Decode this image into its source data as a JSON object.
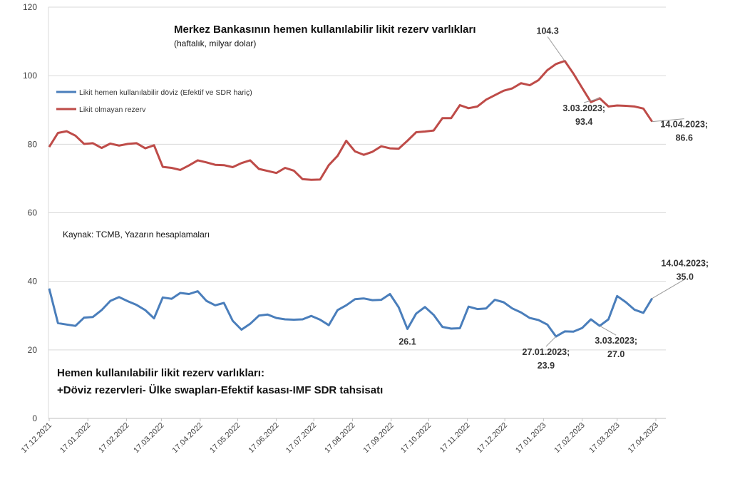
{
  "chart_data": {
    "type": "line",
    "title": "Merkez Bankasının hemen kullanılabilir likit rezerv varlıkları",
    "subtitle": "(haftalık, milyar dolar)",
    "source": "Kaynak: TCMB, Yazarın hesaplamaları",
    "note_lines": [
      "Hemen kullanılabilir likit rezerv varlıkları:",
      "+Döviz rezervleri- Ülke swapları-Efektif kasası-IMF SDR tahsisatı"
    ],
    "ylim": [
      0,
      120
    ],
    "y_ticks": [
      "0",
      "20",
      "40",
      "60",
      "80",
      "100",
      "120"
    ],
    "grid": true,
    "legend_position": "top-left",
    "x_tick_labels": [
      "17.12.2021",
      "17.01.2022",
      "17.02.2022",
      "17.03.2022",
      "17.04.2022",
      "17.05.2022",
      "17.06.2022",
      "17.07.2022",
      "17.08.2022",
      "17.09.2022",
      "17.10.2022",
      "17.11.2022",
      "17.12.2022",
      "17.01.2023",
      "17.02.2023",
      "17.03.2023",
      "17.04.2023"
    ],
    "x": [
      "17.12.2021",
      "24.12.2021",
      "31.12.2021",
      "07.01.2022",
      "14.01.2022",
      "21.01.2022",
      "28.01.2022",
      "04.02.2022",
      "11.02.2022",
      "18.02.2022",
      "25.02.2022",
      "04.03.2022",
      "11.03.2022",
      "18.03.2022",
      "25.03.2022",
      "01.04.2022",
      "08.04.2022",
      "15.04.2022",
      "22.04.2022",
      "29.04.2022",
      "06.05.2022",
      "13.05.2022",
      "20.05.2022",
      "27.05.2022",
      "03.06.2022",
      "10.06.2022",
      "17.06.2022",
      "24.06.2022",
      "01.07.2022",
      "08.07.2022",
      "15.07.2022",
      "22.07.2022",
      "29.07.2022",
      "05.08.2022",
      "12.08.2022",
      "19.08.2022",
      "26.08.2022",
      "02.09.2022",
      "09.09.2022",
      "16.09.2022",
      "23.09.2022",
      "30.09.2022",
      "07.10.2022",
      "14.10.2022",
      "21.10.2022",
      "28.10.2022",
      "04.11.2022",
      "11.11.2022",
      "18.11.2022",
      "25.11.2022",
      "02.12.2022",
      "09.12.2022",
      "16.12.2022",
      "23.12.2022",
      "30.12.2022",
      "06.01.2023",
      "13.01.2023",
      "20.01.2023",
      "27.01.2023",
      "03.02.2023",
      "10.02.2023",
      "17.02.2023",
      "24.02.2023",
      "03.03.2023",
      "10.03.2023",
      "17.03.2023",
      "24.03.2023",
      "31.03.2023",
      "07.04.2023",
      "14.04.2023"
    ],
    "series": [
      {
        "name": "Likit hemen kullanılabilir döviz (Efektif ve SDR hariç)",
        "color": "#4a7ebb",
        "values": [
          37.9,
          27.8,
          27.4,
          27.0,
          29.4,
          29.6,
          31.6,
          34.3,
          35.4,
          34.2,
          33.1,
          31.6,
          29.2,
          35.3,
          34.9,
          36.6,
          36.3,
          37.1,
          34.3,
          33.0,
          33.7,
          28.5,
          25.9,
          27.6,
          30.0,
          30.3,
          29.3,
          28.9,
          28.8,
          28.9,
          29.9,
          28.8,
          27.2,
          31.6,
          33.0,
          34.8,
          35.0,
          34.5,
          34.6,
          36.3,
          32.4,
          26.1,
          30.6,
          32.5,
          30.2,
          26.7,
          26.2,
          26.3,
          32.6,
          31.9,
          32.1,
          34.6,
          33.9,
          32.1,
          30.9,
          29.3,
          28.7,
          27.4,
          23.9,
          25.4,
          25.3,
          26.4,
          28.9,
          27.0,
          28.9,
          35.7,
          33.9,
          31.7,
          30.8,
          35.0
        ]
      },
      {
        "name": "Likit olmayan rezerv",
        "color": "#be4b48",
        "values": [
          79.2,
          83.3,
          83.8,
          82.5,
          80.1,
          80.3,
          78.9,
          80.2,
          79.6,
          80.1,
          80.3,
          78.8,
          79.7,
          73.4,
          73.1,
          72.5,
          73.8,
          75.3,
          74.7,
          74.0,
          73.9,
          73.3,
          74.5,
          75.3,
          72.8,
          72.2,
          71.6,
          73.1,
          72.3,
          69.8,
          69.6,
          69.7,
          73.9,
          76.6,
          81.0,
          77.9,
          76.9,
          77.8,
          79.4,
          78.8,
          78.7,
          81.0,
          83.5,
          83.7,
          84.0,
          87.6,
          87.6,
          91.4,
          90.5,
          91.0,
          93.0,
          94.3,
          95.6,
          96.3,
          97.8,
          97.2,
          98.7,
          101.6,
          103.4,
          104.3,
          100.6,
          96.4,
          92.3,
          93.4,
          91.0,
          91.3,
          91.2,
          91.0,
          90.4,
          86.6
        ]
      }
    ],
    "annotations": [
      {
        "series": 1,
        "index": 59,
        "lines": [
          "104.3"
        ]
      },
      {
        "series": 1,
        "index": 63,
        "lines": [
          "3.03.2023;",
          "93.4"
        ]
      },
      {
        "series": 1,
        "index": 69,
        "lines": [
          "14.04.2023;",
          "86.6"
        ]
      },
      {
        "series": 0,
        "index": 41,
        "lines": [
          "26.1"
        ]
      },
      {
        "series": 0,
        "index": 58,
        "lines": [
          "27.01.2023;",
          "23.9"
        ]
      },
      {
        "series": 0,
        "index": 63,
        "lines": [
          "3.03.2023;",
          "27.0"
        ]
      },
      {
        "series": 0,
        "index": 69,
        "lines": [
          "14.04.2023;",
          "35.0"
        ]
      }
    ]
  }
}
